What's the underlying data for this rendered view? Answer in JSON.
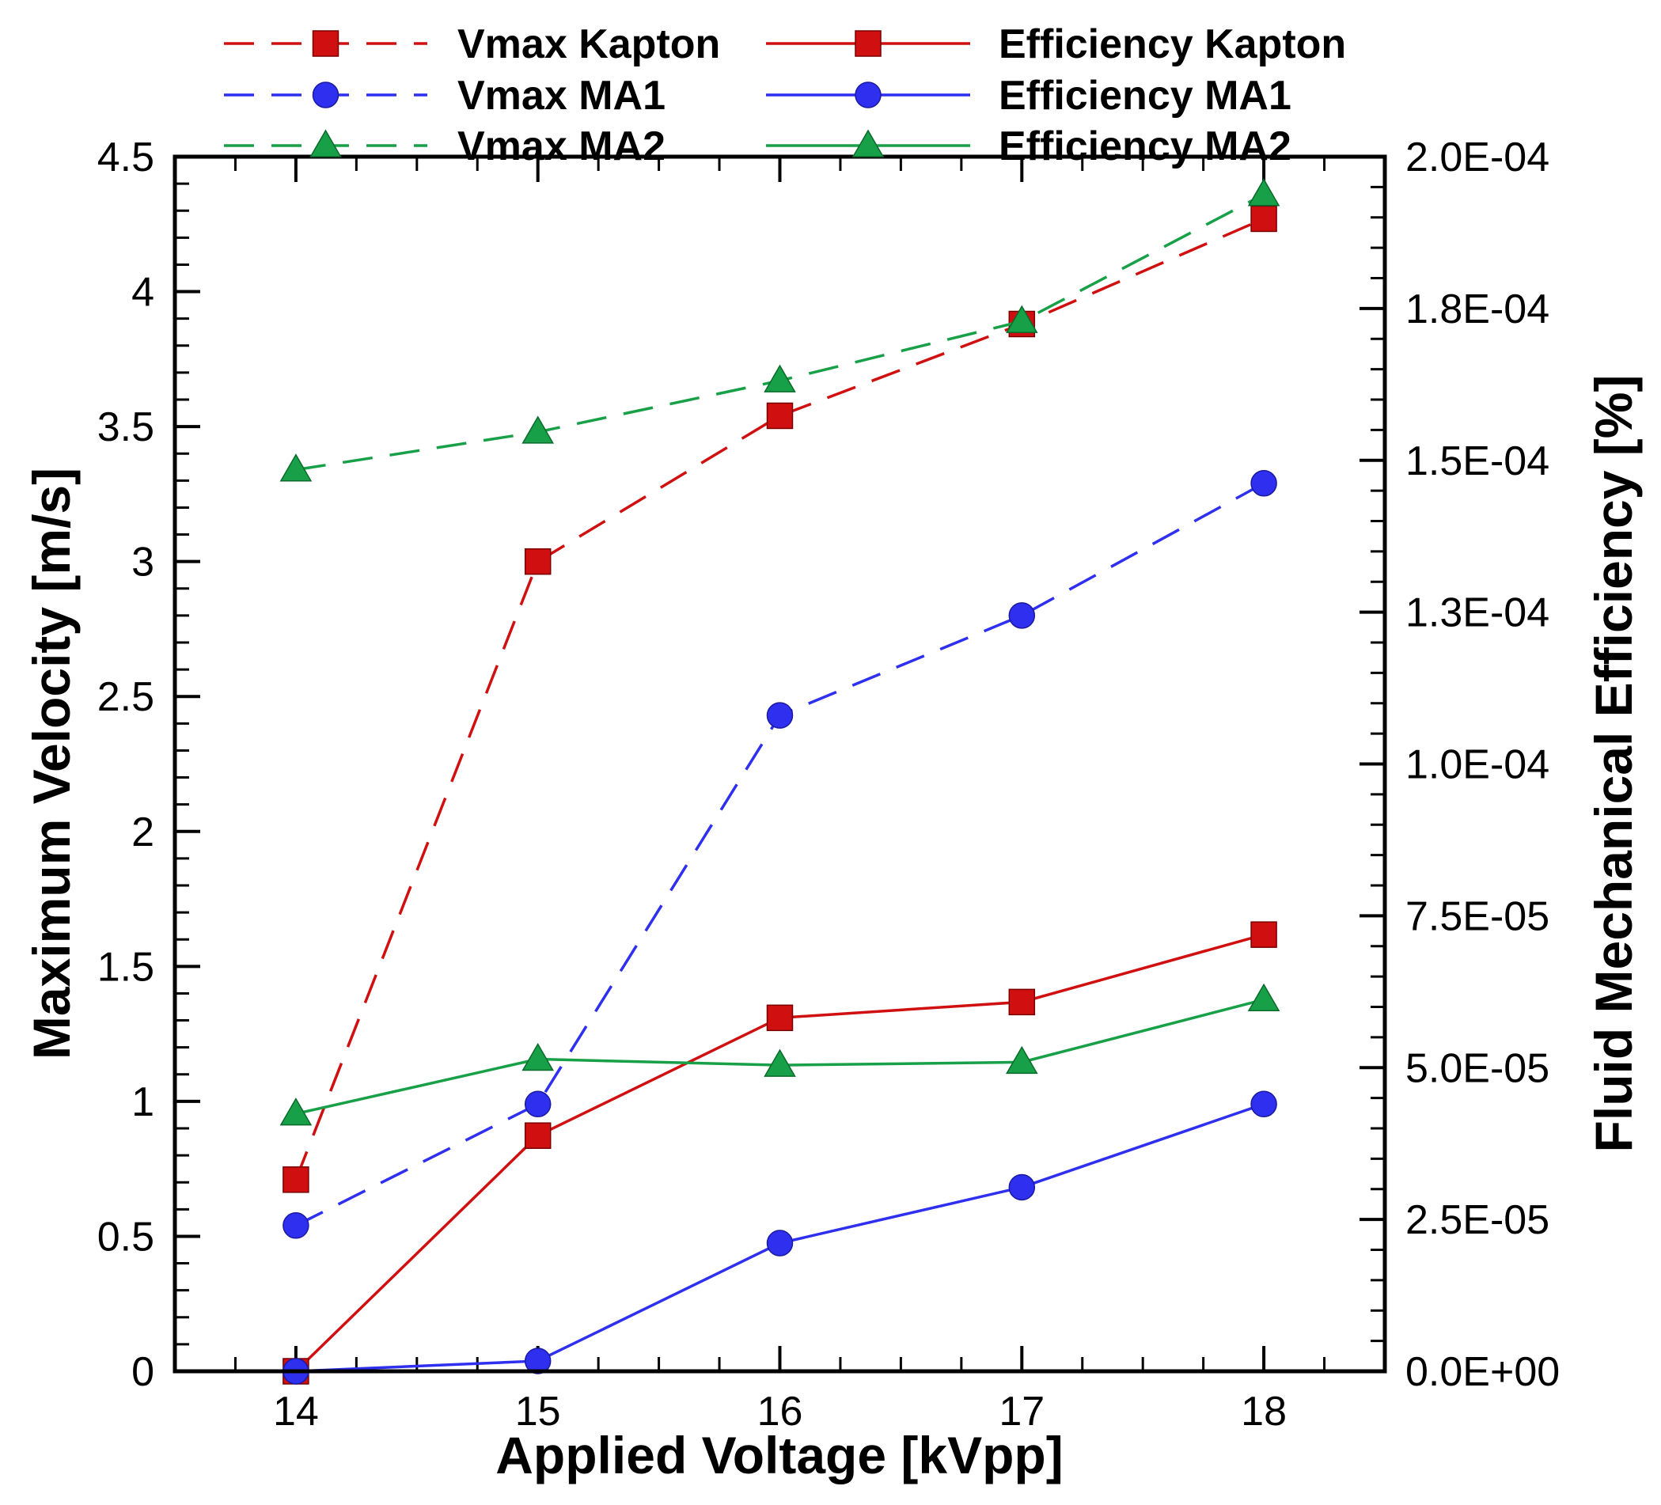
{
  "chart_data": {
    "type": "line",
    "xlabel": "Applied Voltage [kVpp]",
    "ylabel_left": "Maximum Velocity [m/s]",
    "ylabel_right": "Fluid Mechanical Efficiency [%]",
    "x_ticks": [
      "14",
      "15",
      "16",
      "17",
      "18"
    ],
    "y_left_ticks": [
      "0",
      "0.5",
      "1",
      "1.5",
      "2",
      "2.5",
      "3",
      "3.5",
      "4",
      "4.5"
    ],
    "y_right_ticks": [
      "0.0E+00",
      "2.5E-05",
      "5.0E-05",
      "7.5E-05",
      "1.0E-04",
      "1.3E-04",
      "1.5E-04",
      "1.8E-04",
      "2.0E-04"
    ],
    "xlim": [
      13.5,
      18.5
    ],
    "ylim_left": [
      0,
      4.5
    ],
    "ylim_right": [
      0,
      0.0002
    ],
    "legend_position": "top",
    "x": [
      14,
      15,
      16,
      17,
      18
    ],
    "series": [
      {
        "name": "Vmax Kapton",
        "axis": "left",
        "style": "dashed",
        "marker": "square",
        "color": "#d01010",
        "values": [
          0.71,
          3.0,
          3.54,
          3.88,
          4.27
        ]
      },
      {
        "name": "Vmax MA1",
        "axis": "left",
        "style": "dashed",
        "marker": "circle",
        "color": "#2f2ff0",
        "values": [
          0.54,
          0.99,
          2.43,
          2.8,
          3.29
        ]
      },
      {
        "name": "Vmax MA2",
        "axis": "left",
        "style": "dashed",
        "marker": "triangle",
        "color": "#18a048",
        "values": [
          3.34,
          3.48,
          3.67,
          3.89,
          4.36
        ]
      },
      {
        "name": "Efficiency Kapton",
        "axis": "right",
        "style": "solid",
        "marker": "square",
        "color": "#d01010",
        "values": [
          0.0,
          3.88e-05,
          5.82e-05,
          6.08e-05,
          7.19e-05
        ]
      },
      {
        "name": "Efficiency MA1",
        "axis": "right",
        "style": "solid",
        "marker": "circle",
        "color": "#2f2ff0",
        "values": [
          0.0,
          1.7e-06,
          2.11e-05,
          3.03e-05,
          4.4e-05
        ]
      },
      {
        "name": "Efficiency MA2",
        "axis": "right",
        "style": "solid",
        "marker": "triangle",
        "color": "#18a048",
        "values": [
          4.24e-05,
          5.14e-05,
          5.04e-05,
          5.09e-05,
          6.12e-05
        ]
      }
    ]
  }
}
